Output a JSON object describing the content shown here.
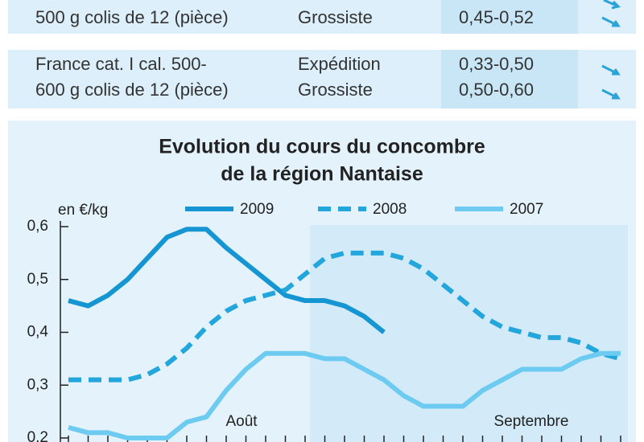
{
  "table": {
    "rows": [
      {
        "product": [
          "500 g colis de 12 (pièce)"
        ],
        "stage": [
          "Grossiste"
        ],
        "price": [
          "0,45-0,52"
        ]
      },
      {
        "product": [
          "France cat. I cal. 500-",
          "600 g colis de 12 (pièce)"
        ],
        "stage": [
          "Expédition",
          "Grossiste"
        ],
        "price": [
          "0,33-0,50",
          "0,50-0,60"
        ]
      }
    ]
  },
  "chart_data": {
    "type": "line",
    "title": [
      "Evolution du cours du concombre",
      "de la région Nantaise"
    ],
    "y_label": "en €/kg",
    "annotations": [
      "Août",
      "Septembre"
    ],
    "categories": [
      null,
      null,
      null,
      null,
      null,
      null,
      null,
      null,
      null,
      null,
      null,
      null,
      null,
      null,
      null,
      null,
      null,
      null,
      null,
      null,
      null,
      null,
      null,
      null,
      null,
      null,
      null,
      null,
      null
    ],
    "ylim": [
      0.2,
      0.6
    ],
    "yticks": [
      {
        "value": 0.2,
        "label": "0,2"
      },
      {
        "value": 0.3,
        "label": "0,3"
      },
      {
        "value": 0.4,
        "label": "0,4"
      },
      {
        "value": 0.5,
        "label": "0,5"
      },
      {
        "value": 0.6,
        "label": "0,6"
      }
    ],
    "series": [
      {
        "name": "2009",
        "color": "#1596d3",
        "dash": false,
        "values": [
          0.46,
          0.45,
          0.47,
          0.5,
          0.54,
          0.58,
          0.595,
          0.595,
          0.56,
          0.53,
          0.5,
          0.47,
          0.46,
          0.46,
          0.45,
          0.43,
          0.4,
          null,
          null,
          null,
          null,
          null,
          null,
          null,
          null,
          null,
          null,
          null,
          null
        ]
      },
      {
        "name": "2008",
        "color": "#22a6dc",
        "dash": true,
        "values": [
          0.31,
          0.31,
          0.31,
          0.31,
          0.32,
          0.34,
          0.37,
          0.41,
          0.44,
          0.46,
          0.47,
          0.48,
          0.51,
          0.54,
          0.55,
          0.55,
          0.55,
          0.54,
          0.52,
          0.49,
          0.46,
          0.43,
          0.41,
          0.4,
          0.39,
          0.39,
          0.38,
          0.36,
          0.35
        ]
      },
      {
        "name": "2007",
        "color": "#6dcbf1",
        "dash": false,
        "values": [
          0.22,
          0.21,
          0.21,
          0.2,
          0.2,
          0.2,
          0.23,
          0.24,
          0.29,
          0.33,
          0.36,
          0.36,
          0.36,
          0.35,
          0.35,
          0.33,
          0.31,
          0.28,
          0.26,
          0.26,
          0.26,
          0.29,
          0.31,
          0.33,
          0.33,
          0.33,
          0.35,
          0.36,
          0.36
        ]
      }
    ]
  }
}
